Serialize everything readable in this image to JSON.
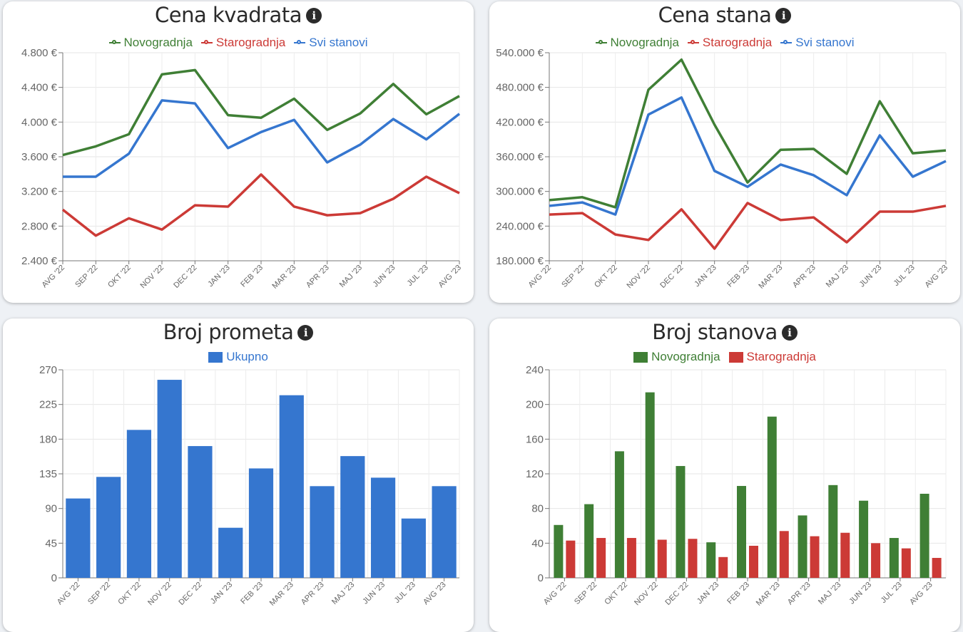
{
  "colors": {
    "green": "#3f7f35",
    "red": "#cc3a36",
    "blue": "#3576cf"
  },
  "info_icon": "i",
  "chart_data": [
    {
      "type": "line",
      "title": "Cena kvadrata",
      "unit": "€",
      "categories": [
        "AVG '22",
        "SEP '22",
        "OKT '22",
        "NOV '22",
        "DEC '22",
        "JAN '23",
        "FEB '23",
        "MAR '23",
        "APR '23",
        "MAJ '23",
        "JUN '23",
        "JUL '23",
        "AVG '23"
      ],
      "yticks": [
        "2.400 €",
        "2.800 €",
        "3.200 €",
        "3.600 €",
        "4.000 €",
        "4.400 €",
        "4.800 €"
      ],
      "ylim": [
        2400,
        4800
      ],
      "series": [
        {
          "name": "Novogradnja",
          "color": "green",
          "values": [
            3620,
            3720,
            3860,
            4550,
            4600,
            4080,
            4050,
            4270,
            3910,
            4100,
            4440,
            4090,
            4300
          ]
        },
        {
          "name": "Starogradnja",
          "color": "red",
          "values": [
            2990,
            2690,
            2890,
            2760,
            3040,
            3025,
            3395,
            3025,
            2925,
            2950,
            3115,
            3370,
            3180
          ]
        },
        {
          "name": "Svi stanovi",
          "color": "blue",
          "values": [
            3370,
            3370,
            3635,
            4250,
            4215,
            3700,
            3885,
            4025,
            3535,
            3740,
            4035,
            3800,
            4095
          ]
        }
      ]
    },
    {
      "type": "line",
      "title": "Cena stana",
      "unit": "€",
      "categories": [
        "AVG '22",
        "SEP '22",
        "OKT '22",
        "NOV '22",
        "DEC '22",
        "JAN '23",
        "FEB '23",
        "MAR '23",
        "APR '23",
        "MAJ '23",
        "JUN '23",
        "JUL '23",
        "AVG '23"
      ],
      "yticks": [
        "180.000 €",
        "240.000 €",
        "300.000 €",
        "360.000 €",
        "420.000 €",
        "480.000 €",
        "540.000 €"
      ],
      "ylim": [
        180000,
        540000
      ],
      "series": [
        {
          "name": "Novogradnja",
          "color": "green",
          "values": [
            285000,
            290000,
            272500,
            476000,
            528000,
            415500,
            315500,
            372000,
            373500,
            330500,
            456000,
            366000,
            371000
          ]
        },
        {
          "name": "Starogradnja",
          "color": "red",
          "values": [
            260000,
            262500,
            225500,
            216000,
            269000,
            201000,
            280000,
            250500,
            255000,
            212000,
            265000,
            265000,
            275000
          ]
        },
        {
          "name": "Svi stanovi",
          "color": "blue",
          "values": [
            275000,
            281000,
            260000,
            433000,
            462500,
            335500,
            308000,
            346500,
            328000,
            293500,
            397000,
            325500,
            352500
          ]
        }
      ]
    },
    {
      "type": "bar",
      "title": "Broj prometa",
      "categories": [
        "AVG '22",
        "SEP '22",
        "OKT '22",
        "NOV '22",
        "DEC '22",
        "JAN '23",
        "FEB '23",
        "MAR '23",
        "APR '23",
        "MAJ '23",
        "JUN '23",
        "JUL '23",
        "AVG '23"
      ],
      "yticks": [
        "0",
        "45",
        "90",
        "135",
        "180",
        "225",
        "270"
      ],
      "ylim": [
        0,
        270
      ],
      "series": [
        {
          "name": "Ukupno",
          "color": "blue",
          "values": [
            103,
            131,
            192,
            257,
            171,
            65,
            142,
            237,
            119,
            158,
            130,
            77,
            119
          ]
        }
      ]
    },
    {
      "type": "bar",
      "title": "Broj stanova",
      "categories": [
        "AVG '22",
        "SEP '22",
        "OKT '22",
        "NOV '22",
        "DEC '22",
        "JAN '23",
        "FEB '23",
        "MAR '23",
        "APR '23",
        "MAJ '23",
        "JUN '23",
        "JUL '23",
        "AVG '23"
      ],
      "yticks": [
        "0",
        "40",
        "80",
        "120",
        "160",
        "200",
        "240"
      ],
      "ylim": [
        0,
        240
      ],
      "series": [
        {
          "name": "Novogradnja",
          "color": "green",
          "values": [
            61,
            85,
            146,
            214,
            129,
            41,
            106,
            186,
            72,
            107,
            89,
            46,
            97
          ]
        },
        {
          "name": "Starogradnja",
          "color": "red",
          "values": [
            43,
            46,
            46,
            44,
            45,
            24,
            37,
            54,
            48,
            52,
            40,
            34,
            23
          ]
        }
      ]
    }
  ]
}
